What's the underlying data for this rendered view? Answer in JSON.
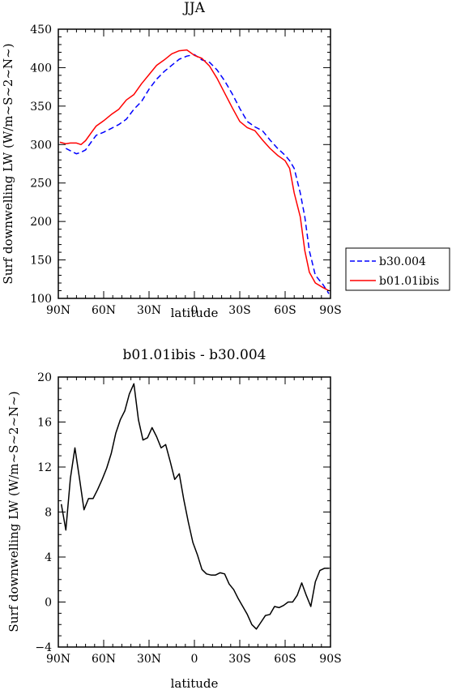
{
  "chart_data": [
    {
      "type": "line",
      "title": "JJA",
      "xlabel": "latitude",
      "ylabel": "Surf downwelling LW (W/m~S~2~N~)",
      "xlim": [
        90,
        -90
      ],
      "ylim": [
        100,
        450
      ],
      "x_tick_labels": [
        "90N",
        "60N",
        "30N",
        "0",
        "30S",
        "60S",
        "90S"
      ],
      "y_tick_labels": [
        "100",
        "150",
        "200",
        "250",
        "300",
        "350",
        "400",
        "450"
      ],
      "legend_position": "right",
      "series": [
        {
          "name": "b30.004",
          "color": "#0000ff",
          "style": "dashed",
          "x": [
            85,
            82,
            78,
            75,
            72,
            68,
            65,
            60,
            55,
            50,
            45,
            40,
            35,
            30,
            25,
            20,
            15,
            10,
            5,
            0,
            -5,
            -10,
            -15,
            -20,
            -25,
            -30,
            -35,
            -40,
            -45,
            -50,
            -55,
            -60,
            -63,
            -66,
            -70,
            -73,
            -76,
            -80,
            -85,
            -89
          ],
          "y": [
            295,
            292,
            288,
            290,
            293,
            304,
            312,
            316,
            321,
            326,
            333,
            346,
            356,
            372,
            385,
            395,
            403,
            411,
            415,
            417,
            410,
            407,
            397,
            383,
            366,
            347,
            330,
            323,
            318,
            306,
            295,
            286,
            279,
            269,
            237,
            206,
            162,
            130,
            118,
            106
          ]
        },
        {
          "name": "b01.01ibis",
          "color": "#ff0000",
          "style": "solid",
          "x": [
            89,
            85,
            82,
            78,
            75,
            72,
            68,
            65,
            60,
            55,
            50,
            45,
            40,
            35,
            30,
            25,
            20,
            15,
            10,
            5,
            0,
            -5,
            -10,
            -15,
            -20,
            -25,
            -30,
            -35,
            -40,
            -45,
            -50,
            -55,
            -60,
            -63,
            -66,
            -70,
            -73,
            -76,
            -80,
            -85,
            -89
          ],
          "y": [
            303,
            301,
            302,
            302,
            300,
            305,
            316,
            324,
            331,
            339,
            346,
            358,
            365,
            379,
            391,
            403,
            410,
            418,
            422,
            423,
            416,
            412,
            402,
            386,
            367,
            348,
            330,
            322,
            318,
            306,
            295,
            286,
            279,
            269,
            237,
            206,
            162,
            134,
            120,
            114,
            110
          ]
        }
      ]
    },
    {
      "type": "line",
      "title": "b01.01ibis - b30.004",
      "xlabel": "latitude",
      "ylabel": "Surf downwelling LW (W/m~S~2~N~)",
      "xlim": [
        90,
        -90
      ],
      "ylim": [
        -4,
        20
      ],
      "x_tick_labels": [
        "90N",
        "60N",
        "30N",
        "0",
        "30S",
        "60S",
        "90S"
      ],
      "y_tick_labels": [
        "−4",
        "0",
        "4",
        "8",
        "12",
        "16",
        "20"
      ],
      "series": [
        {
          "name": "",
          "color": "#000000",
          "style": "solid",
          "x": [
            88,
            85,
            82,
            79,
            76,
            73,
            70,
            67,
            64,
            61,
            58,
            55,
            52,
            49,
            46,
            43,
            40,
            37,
            34,
            31,
            28,
            25,
            22,
            19,
            16,
            13,
            10,
            7,
            4,
            1,
            -2,
            -5,
            -8,
            -11,
            -14,
            -17,
            -20,
            -23,
            -26,
            -29,
            -32,
            -35,
            -38,
            -41,
            -44,
            -47,
            -50,
            -53,
            -56,
            -59,
            -62,
            -65,
            -68,
            -71,
            -74,
            -77,
            -80,
            -83,
            -86,
            -89
          ],
          "y": [
            8.7,
            6.4,
            11.0,
            13.7,
            11.0,
            8.2,
            9.2,
            9.2,
            10.0,
            10.9,
            11.9,
            13.2,
            15.0,
            16.2,
            17.0,
            18.5,
            19.4,
            16.2,
            14.4,
            14.6,
            15.5,
            14.7,
            13.7,
            14.0,
            12.5,
            10.9,
            11.4,
            9.1,
            7.1,
            5.3,
            4.2,
            2.9,
            2.5,
            2.4,
            2.4,
            2.6,
            2.5,
            1.6,
            1.1,
            0.3,
            -0.4,
            -1.1,
            -2.0,
            -2.4,
            -1.8,
            -1.2,
            -1.1,
            -0.4,
            -0.5,
            -0.3,
            0.0,
            0.0,
            0.6,
            1.7,
            0.6,
            -0.4,
            1.8,
            2.8,
            3.0,
            3.0
          ]
        }
      ]
    }
  ]
}
